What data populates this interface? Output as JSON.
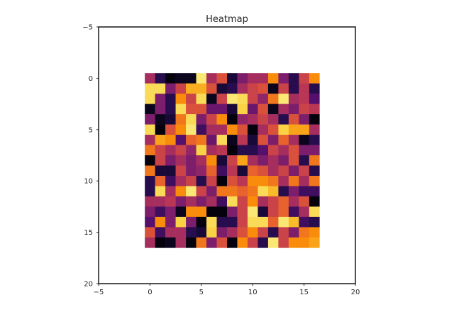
{
  "chart_data": {
    "type": "heatmap",
    "title": "Heatmap",
    "xlabel": "",
    "ylabel": "",
    "xlim": [
      -5,
      20
    ],
    "ylim": [
      20,
      -5
    ],
    "x_ticks": [
      "−5",
      "0",
      "5",
      "10",
      "15",
      "20"
    ],
    "y_ticks": [
      "−5",
      "0",
      "5",
      "10",
      "15",
      "20"
    ],
    "x_tick_values": [
      -5,
      0,
      5,
      10,
      15,
      20
    ],
    "y_tick_values": [
      -5,
      0,
      5,
      10,
      15,
      20
    ],
    "colormap": "inferno",
    "value_range": [
      0,
      1
    ],
    "grid": false,
    "matrix": [
      [
        0.45,
        0.15,
        0.02,
        0.05,
        0.05,
        0.95,
        0.45,
        0.6,
        0.1,
        0.35,
        0.45,
        0.45,
        0.75,
        0.35,
        0.15,
        0.55,
        0.75
      ],
      [
        0.92,
        0.92,
        0.35,
        0.55,
        0.82,
        0.82,
        0.6,
        0.1,
        0.15,
        0.45,
        0.55,
        0.6,
        0.05,
        0.55,
        0.15,
        0.5,
        0.15
      ],
      [
        0.92,
        0.35,
        0.15,
        0.75,
        0.55,
        0.92,
        0.05,
        0.55,
        0.95,
        0.92,
        0.55,
        0.4,
        0.7,
        0.95,
        0.45,
        0.5,
        0.25
      ],
      [
        0.05,
        0.35,
        0.15,
        0.92,
        0.6,
        0.6,
        0.3,
        0.3,
        0.1,
        0.9,
        0.3,
        0.6,
        0.05,
        0.45,
        0.35,
        0.55,
        0.5
      ],
      [
        0.35,
        0.05,
        0.1,
        0.7,
        0.92,
        0.35,
        0.55,
        0.75,
        0.02,
        0.4,
        0.45,
        0.55,
        0.45,
        0.15,
        0.6,
        0.35,
        0.02
      ],
      [
        0.92,
        0.02,
        0.6,
        0.75,
        0.95,
        0.2,
        0.45,
        0.45,
        0.75,
        0.6,
        0.02,
        0.45,
        0.6,
        0.9,
        0.8,
        0.8,
        0.45
      ],
      [
        0.45,
        0.8,
        0.75,
        0.25,
        0.65,
        0.7,
        0.3,
        0.92,
        0.05,
        0.5,
        0.1,
        0.6,
        0.35,
        0.65,
        0.45,
        0.05,
        0.15
      ],
      [
        0.7,
        0.55,
        0.45,
        0.55,
        0.4,
        0.9,
        0.45,
        0.5,
        0.02,
        0.15,
        0.15,
        0.25,
        0.55,
        0.45,
        0.6,
        0.35,
        0.35
      ],
      [
        0.02,
        0.55,
        0.35,
        0.45,
        0.35,
        0.45,
        0.75,
        0.1,
        0.55,
        0.8,
        0.45,
        0.35,
        0.45,
        0.35,
        0.6,
        0.15,
        0.7
      ],
      [
        0.7,
        0.1,
        0.1,
        0.55,
        0.35,
        0.4,
        0.65,
        0.2,
        0.5,
        0.1,
        0.65,
        0.6,
        0.45,
        0.55,
        0.35,
        0.55,
        0.15
      ],
      [
        0.15,
        0.65,
        0.2,
        0.45,
        0.55,
        0.15,
        0.55,
        0.02,
        0.6,
        0.5,
        0.75,
        0.75,
        0.7,
        0.45,
        0.7,
        0.45,
        0.7
      ],
      [
        0.15,
        0.92,
        0.45,
        0.75,
        0.95,
        0.55,
        0.35,
        0.7,
        0.7,
        0.65,
        0.7,
        0.92,
        0.85,
        0.15,
        0.35,
        0.2,
        0.2
      ],
      [
        0.45,
        0.45,
        0.5,
        0.35,
        0.45,
        0.35,
        0.45,
        0.2,
        0.92,
        0.55,
        0.75,
        0.45,
        0.55,
        0.65,
        0.45,
        0.6,
        0.02
      ],
      [
        0.35,
        0.2,
        0.35,
        0.05,
        0.75,
        0.75,
        0.02,
        0.02,
        0.35,
        0.55,
        0.95,
        0.1,
        0.55,
        0.65,
        0.2,
        0.45,
        0.92
      ],
      [
        0.25,
        0.75,
        0.35,
        0.9,
        0.35,
        0.02,
        0.92,
        0.15,
        0.15,
        0.55,
        0.92,
        0.92,
        0.65,
        0.95,
        0.85,
        0.2,
        0.15
      ],
      [
        0.6,
        0.2,
        0.45,
        0.45,
        0.15,
        0.1,
        0.9,
        0.35,
        0.45,
        0.6,
        0.75,
        0.55,
        0.15,
        0.55,
        0.35,
        0.7,
        0.75
      ],
      [
        0.45,
        0.02,
        0.05,
        0.45,
        0.02,
        0.7,
        0.35,
        0.6,
        0.02,
        0.75,
        0.55,
        0.15,
        0.95,
        0.55,
        0.75,
        0.75,
        0.8
      ]
    ]
  }
}
